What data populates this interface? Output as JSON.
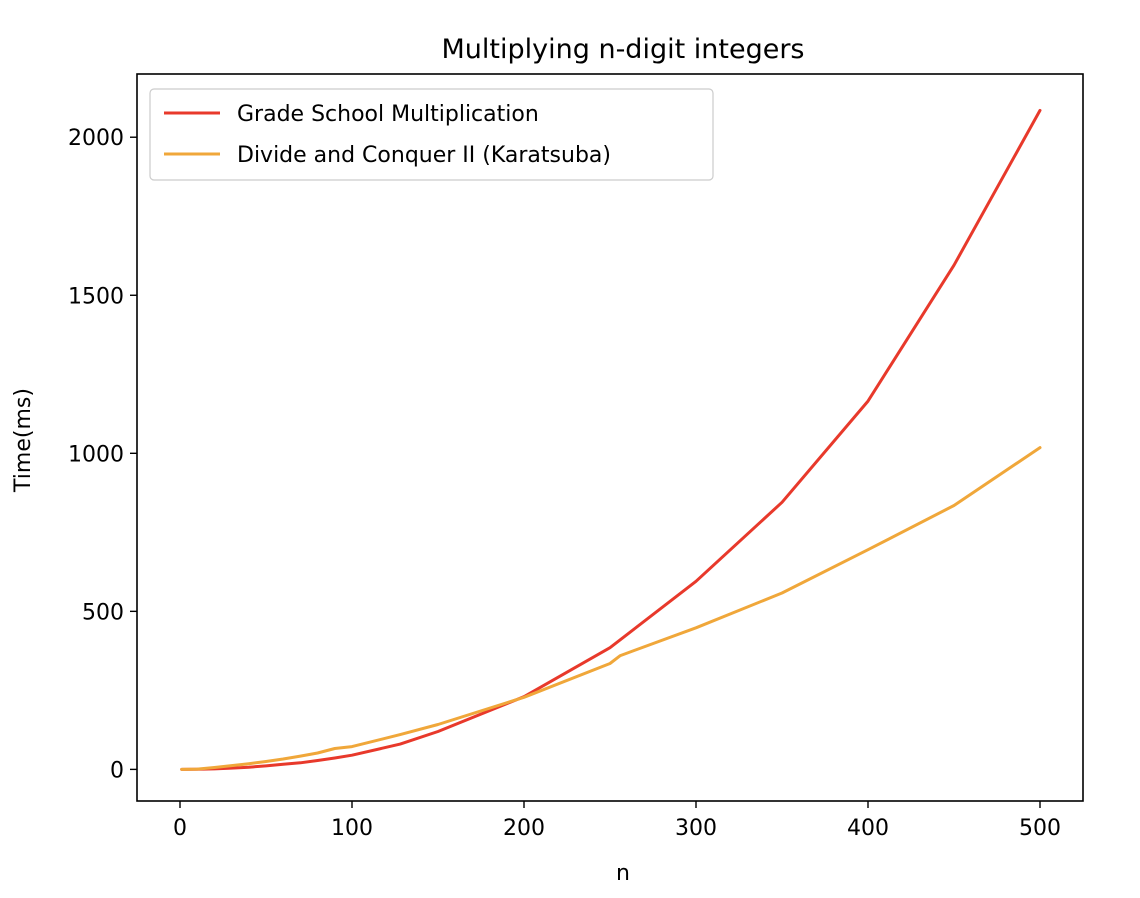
{
  "chart_data": {
    "type": "line",
    "title": "Multiplying n-digit integers",
    "xlabel": "n",
    "ylabel": "Time(ms)",
    "xlim": [
      -25,
      525
    ],
    "ylim": [
      -100,
      2200
    ],
    "xticks": [
      0,
      100,
      200,
      300,
      400,
      500
    ],
    "yticks": [
      0,
      500,
      1000,
      1500,
      2000
    ],
    "grid": false,
    "legend_position": "upper-left",
    "series": [
      {
        "name": "Grade School Multiplication",
        "color": "#e8392b",
        "x": [
          1,
          10,
          20,
          30,
          40,
          50,
          60,
          70,
          80,
          90,
          100,
          128,
          150,
          200,
          250,
          300,
          350,
          400,
          450,
          500
        ],
        "y": [
          0,
          0.4,
          1.7,
          4,
          7,
          11,
          16,
          21,
          28,
          36,
          45,
          80,
          120,
          230,
          385,
          595,
          845,
          1165,
          1595,
          2085
        ]
      },
      {
        "name": "Divide and Conquer II (Karatsuba)",
        "color": "#f0a73a",
        "x": [
          1,
          10,
          20,
          30,
          40,
          50,
          60,
          70,
          80,
          90,
          100,
          128,
          150,
          200,
          250,
          256,
          300,
          350,
          400,
          450,
          500
        ],
        "y": [
          0,
          1,
          6,
          12,
          18,
          25,
          33,
          42,
          52,
          66,
          72,
          110,
          142,
          228,
          335,
          360,
          448,
          558,
          695,
          835,
          1018
        ]
      }
    ]
  }
}
